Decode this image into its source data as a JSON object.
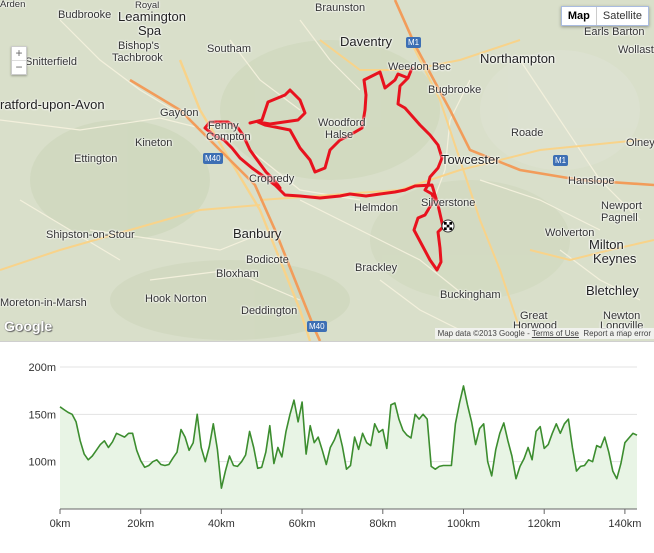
{
  "map": {
    "map_button": "Map",
    "satellite_button": "Satellite",
    "zoom_in": "+",
    "zoom_out": "−",
    "google_logo": "Google",
    "map_data": "Map data ©2013 Google",
    "separator": " - ",
    "terms": "Terms of Use",
    "report": "Report a map error",
    "places": {
      "arden": "Arden",
      "budbrooke": "Budbrooke",
      "royal": "Royal",
      "leamington": "Leamington",
      "spa": "Spa",
      "braunston": "Braunston",
      "daventry": "Daventry",
      "weedon_bec": "Weedon Bec",
      "northampton": "Northampton",
      "earls_barton": "Earls Barton",
      "wollaston": "Wollast",
      "bishops_1": "Bishop's",
      "bishops_2": "Tachbrook",
      "southam": "Southam",
      "snitterfield": "Snitterfield",
      "stratford": "ratford-upon-Avon",
      "gaydon": "Gaydon",
      "fenny_1": "Fenny",
      "fenny_2": "Compton",
      "kineton": "Kineton",
      "woodford_1": "Woodford",
      "woodford_2": "Halse",
      "bugbrooke": "Bugbrooke",
      "roade": "Roade",
      "olney": "Olney",
      "ettington": "Ettington",
      "towcester": "Towcester",
      "hanslope": "Hanslope",
      "cropredy": "Cropredy",
      "helmdon": "Helmdon",
      "silverstone": "Silverstone",
      "newport_1": "Newport",
      "newport_2": "Pagnell",
      "wolverton": "Wolverton",
      "shipston": "Shipston-on-Stour",
      "banbury": "Banbury",
      "milton_1": "Milton",
      "milton_2": "Keynes",
      "bodicote": "Bodicote",
      "brackley": "Brackley",
      "bloxham": "Bloxham",
      "hook_norton": "Hook Norton",
      "moreton": "Moreton-in-Marsh",
      "bletchley": "Bletchley",
      "deddington": "Deddington",
      "buckingham": "Buckingham",
      "great_horwood_1": "Great",
      "great_horwood_2": "Horwood",
      "newton_longville_1": "Newton",
      "newton_longville_2": "Longville"
    },
    "shields": {
      "m1_north": "M1",
      "m1_south": "M1",
      "m40_north": "M40",
      "m40_south": "M40"
    }
  },
  "colors": {
    "route": "#e8121e",
    "elevation_line": "#3c8d2f",
    "elevation_fill": "#e8f4e5",
    "map_bg": "#d9dfca"
  },
  "chart_data": {
    "type": "area",
    "title": "",
    "xlabel": "",
    "ylabel": "",
    "x_unit": "km",
    "y_unit": "m",
    "xlim": [
      0,
      143
    ],
    "ylim": [
      50,
      200
    ],
    "x_ticks": [
      "0km",
      "20km",
      "40km",
      "60km",
      "80km",
      "100km",
      "120km",
      "140km"
    ],
    "x_tick_values": [
      0,
      20,
      40,
      60,
      80,
      100,
      120,
      140
    ],
    "y_ticks": [
      "100m",
      "150m",
      "200m"
    ],
    "y_tick_values": [
      100,
      150,
      200
    ],
    "grid": true,
    "series": [
      {
        "x": [
          0,
          1,
          2,
          3,
          4,
          5,
          6,
          7,
          8,
          9,
          10,
          11,
          12,
          13,
          14,
          15,
          16,
          17,
          18,
          19,
          20,
          21,
          22,
          23,
          24,
          25,
          26,
          27,
          28,
          29,
          30,
          31,
          32,
          33,
          34,
          35,
          36,
          37,
          38,
          39,
          40,
          41,
          42,
          43,
          44,
          45,
          46,
          47,
          48,
          49,
          50,
          51,
          52,
          53,
          54,
          55,
          56,
          57,
          58,
          59,
          60,
          61,
          62,
          63,
          64,
          65,
          66,
          67,
          68,
          69,
          70,
          71,
          72,
          73,
          74,
          75,
          76,
          77,
          78,
          79,
          80,
          81,
          82,
          83,
          84,
          85,
          86,
          87,
          88,
          89,
          90,
          91,
          92,
          93,
          94,
          95,
          96,
          97,
          98,
          99,
          100,
          101,
          102,
          103,
          104,
          105,
          106,
          107,
          108,
          109,
          110,
          111,
          112,
          113,
          114,
          115,
          116,
          117,
          118,
          119,
          120,
          121,
          122,
          123,
          124,
          125,
          126,
          127,
          128,
          129,
          130,
          131,
          132,
          133,
          134,
          135,
          136,
          137,
          138,
          139,
          140,
          141,
          142,
          143
        ],
        "values": [
          158,
          155,
          152,
          150,
          142,
          122,
          108,
          102,
          106,
          112,
          118,
          122,
          115,
          121,
          130,
          128,
          126,
          130,
          130,
          112,
          101,
          94,
          96,
          100,
          102,
          97,
          96,
          97,
          104,
          110,
          134,
          126,
          112,
          120,
          150,
          115,
          100,
          116,
          140,
          113,
          72,
          90,
          106,
          96,
          95,
          100,
          107,
          132,
          115,
          93,
          94,
          110,
          138,
          98,
          115,
          105,
          132,
          150,
          165,
          142,
          163,
          108,
          138,
          120,
          126,
          112,
          97,
          115,
          123,
          134,
          116,
          92,
          96,
          126,
          113,
          130,
          120,
          117,
          140,
          131,
          134,
          114,
          160,
          162,
          145,
          133,
          128,
          125,
          150,
          145,
          150,
          145,
          95,
          92,
          95,
          96,
          96,
          96,
          140,
          162,
          180,
          160,
          142,
          118,
          135,
          140,
          100,
          85,
          113,
          130,
          141,
          122,
          106,
          82,
          95,
          103,
          115,
          102,
          132,
          137,
          114,
          118,
          130,
          140,
          130,
          140,
          145,
          115,
          90,
          95,
          96,
          102,
          100,
          117,
          115,
          126,
          110,
          90,
          82,
          98,
          120,
          125,
          130,
          128
        ]
      }
    ]
  }
}
